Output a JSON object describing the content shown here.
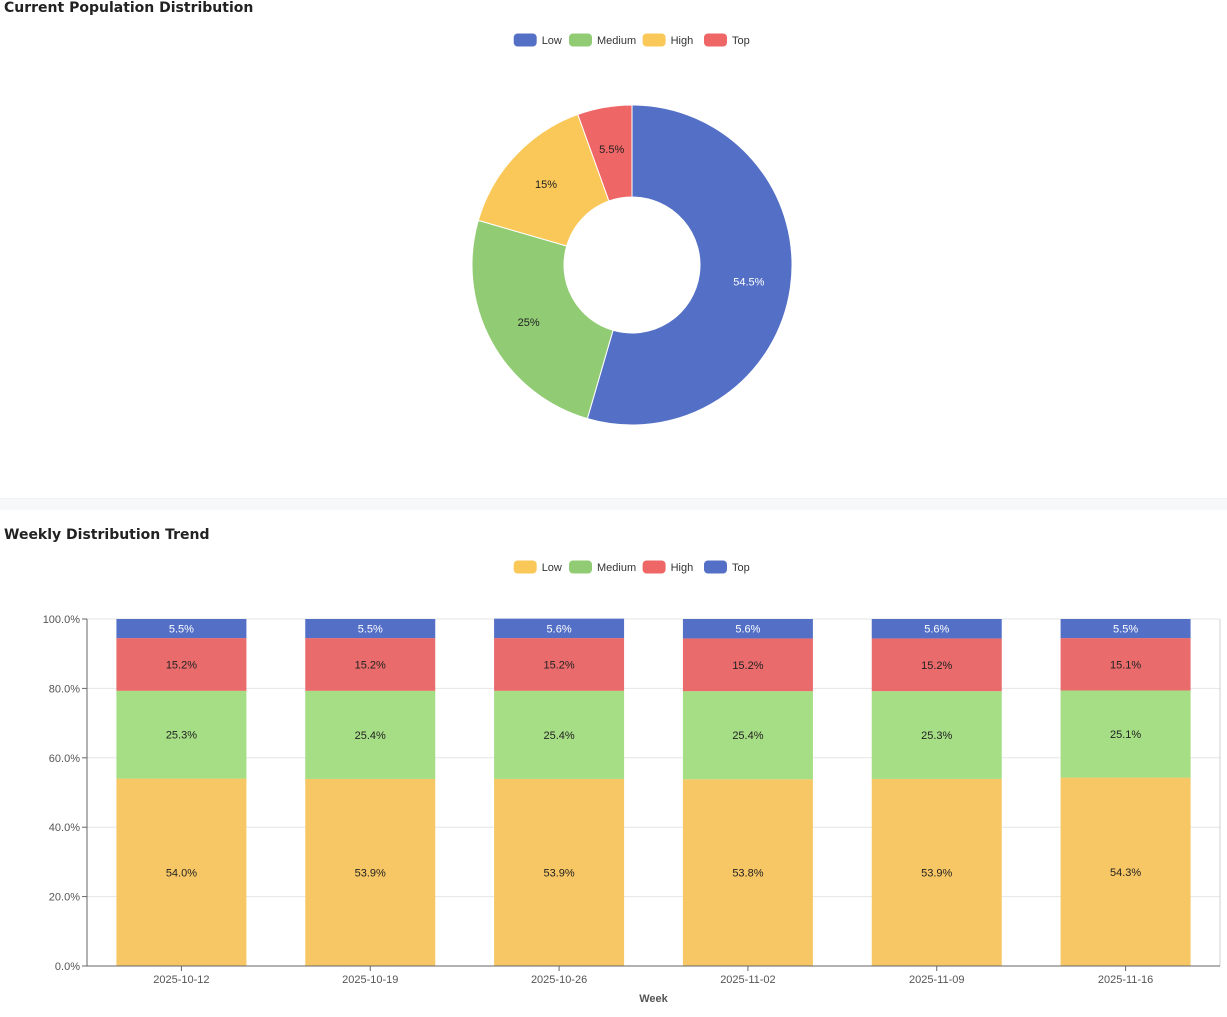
{
  "colors": {
    "blue": "#5470c6",
    "green": "#91cc75",
    "green_bar": "#a5de84",
    "yellow": "#fac858",
    "red": "#ee6666"
  },
  "chart_data": [
    {
      "type": "pie",
      "title": "Current Population Distribution",
      "legend": [
        {
          "name": "Low",
          "color": "#5470c6"
        },
        {
          "name": "Medium",
          "color": "#91cc75"
        },
        {
          "name": "High",
          "color": "#fac858"
        },
        {
          "name": "Top",
          "color": "#ee6666"
        }
      ],
      "slices": [
        {
          "name": "Low",
          "value": 54.5,
          "label": "54.5%",
          "color": "#5470c6",
          "label_color": "#ffffff"
        },
        {
          "name": "Medium",
          "value": 25,
          "label": "25%",
          "color": "#91cc75",
          "label_color": "#222222"
        },
        {
          "name": "High",
          "value": 15,
          "label": "15%",
          "color": "#fac858",
          "label_color": "#222222"
        },
        {
          "name": "Top",
          "value": 5.5,
          "label": "5.5%",
          "color": "#ee6666",
          "label_color": "#222222"
        }
      ]
    },
    {
      "type": "bar",
      "stacked": true,
      "title": "Weekly Distribution Trend",
      "xlabel": "Week",
      "ylabel": "",
      "ylim": [
        0,
        100
      ],
      "y_ticks": [
        "0.0%",
        "20.0%",
        "40.0%",
        "60.0%",
        "80.0%",
        "100.0%"
      ],
      "categories": [
        "2025-10-12",
        "2025-10-19",
        "2025-10-26",
        "2025-11-02",
        "2025-11-09",
        "2025-11-16"
      ],
      "legend": [
        {
          "name": "Low",
          "color": "#fac858"
        },
        {
          "name": "Medium",
          "color": "#91cc75"
        },
        {
          "name": "High",
          "color": "#ee6666"
        },
        {
          "name": "Top",
          "color": "#5470c6"
        }
      ],
      "series": [
        {
          "name": "Low",
          "color": "#f8c765",
          "label_color": "#222222",
          "values": [
            54.0,
            53.9,
            53.9,
            53.8,
            53.9,
            54.3
          ],
          "labels": [
            "54.0%",
            "53.9%",
            "53.9%",
            "53.8%",
            "53.9%",
            "54.3%"
          ]
        },
        {
          "name": "Medium",
          "color": "#a5de84",
          "label_color": "#222222",
          "values": [
            25.3,
            25.4,
            25.4,
            25.4,
            25.3,
            25.1
          ],
          "labels": [
            "25.3%",
            "25.4%",
            "25.4%",
            "25.4%",
            "25.3%",
            "25.1%"
          ]
        },
        {
          "name": "High",
          "color": "#e96b6b",
          "label_color": "#222222",
          "values": [
            15.2,
            15.2,
            15.2,
            15.2,
            15.2,
            15.1
          ],
          "labels": [
            "15.2%",
            "15.2%",
            "15.2%",
            "15.2%",
            "15.2%",
            "15.1%"
          ]
        },
        {
          "name": "Top",
          "color": "#5470c6",
          "label_color": "#ffffff",
          "values": [
            5.5,
            5.5,
            5.6,
            5.6,
            5.6,
            5.5
          ],
          "labels": [
            "5.5%",
            "5.5%",
            "5.6%",
            "5.6%",
            "5.6%",
            "5.5%"
          ]
        }
      ]
    }
  ]
}
